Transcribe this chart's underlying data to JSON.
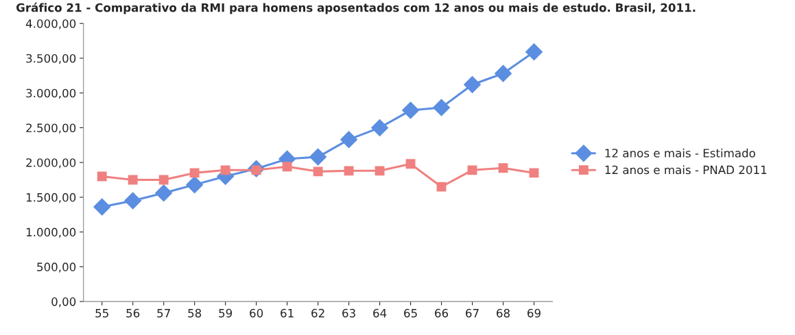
{
  "chart_data": {
    "type": "line",
    "title": "Gráfico 21 - Comparativo da RMI para homens aposentados com 12 anos ou mais de estudo. Brasil, 2011.",
    "categories": [
      "55",
      "56",
      "57",
      "58",
      "59",
      "60",
      "61",
      "62",
      "63",
      "64",
      "65",
      "66",
      "67",
      "68",
      "69"
    ],
    "series": [
      {
        "name": "12 anos e mais - Estimado",
        "color": "#5b8ee0",
        "marker": "diamond",
        "values": [
          1360,
          1450,
          1560,
          1680,
          1800,
          1910,
          2050,
          2080,
          2330,
          2500,
          2750,
          2790,
          3120,
          3280,
          3590
        ]
      },
      {
        "name": "12 anos e mais - PNAD 2011",
        "color": "#f08080",
        "marker": "square",
        "values": [
          1800,
          1750,
          1750,
          1850,
          1890,
          1890,
          1940,
          1870,
          1880,
          1880,
          1980,
          1650,
          1890,
          1920,
          1850
        ]
      }
    ],
    "ylim": [
      0,
      4000
    ],
    "yticks": [
      {
        "value": 0,
        "label": "0,00"
      },
      {
        "value": 500,
        "label": "500,00"
      },
      {
        "value": 1000,
        "label": "1.000,00"
      },
      {
        "value": 1500,
        "label": "1.500,00"
      },
      {
        "value": 2000,
        "label": "2.000,00"
      },
      {
        "value": 2500,
        "label": "2.500,00"
      },
      {
        "value": 3000,
        "label": "3.000,00"
      },
      {
        "value": 3500,
        "label": "3.500,00"
      },
      {
        "value": 4000,
        "label": "4.000,00"
      }
    ],
    "grid": false,
    "legend": "right",
    "line_style": "solid"
  }
}
